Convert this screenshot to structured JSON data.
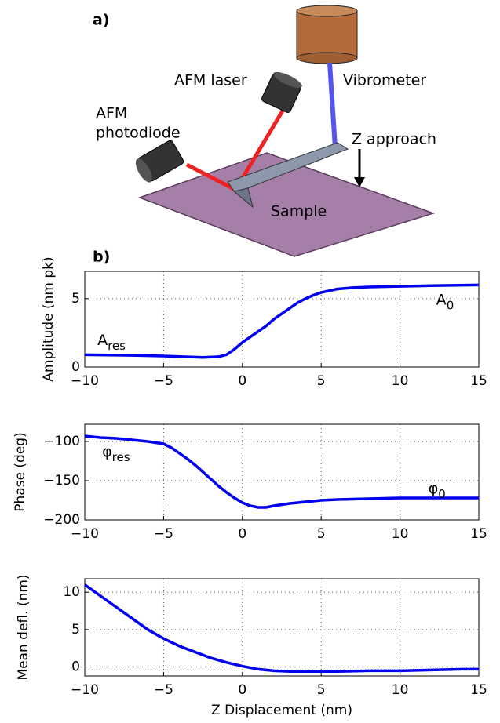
{
  "figure": {
    "panel_a": "a)",
    "panel_b": "b)",
    "diagram": {
      "laser": "AFM laser",
      "photodiode_1": "AFM",
      "photodiode_2": "photodiode",
      "vibrometer": "Vibrometer",
      "approach": "Z approach",
      "sample": "Sample"
    }
  },
  "chart_data": [
    {
      "type": "line",
      "y_label": "Amplitude (nm pk)",
      "grid": true,
      "annotations": [
        {
          "text": "A",
          "sub": "res"
        },
        {
          "text": "A",
          "sub": "0"
        }
      ],
      "xlim": [
        -10,
        15
      ],
      "ylim": [
        0,
        7
      ],
      "xticks": [
        {
          "value": -10,
          "label": "−10"
        },
        {
          "value": -5,
          "label": "−5"
        },
        0,
        5,
        10,
        15
      ],
      "yticks": [
        0,
        5
      ],
      "series": [
        {
          "color": "#0000ee",
          "x": [
            -10,
            -7,
            -5,
            -2.5,
            -1.5,
            -1,
            -0.5,
            0,
            0.5,
            1,
            1.5,
            2,
            2.5,
            3,
            3.5,
            4,
            4.5,
            5,
            6,
            7,
            8,
            10,
            12,
            15
          ],
          "values": [
            0.9,
            0.85,
            0.8,
            0.7,
            0.75,
            0.9,
            1.3,
            1.8,
            2.2,
            2.6,
            3.0,
            3.5,
            3.9,
            4.3,
            4.7,
            5.0,
            5.25,
            5.45,
            5.7,
            5.8,
            5.85,
            5.9,
            5.95,
            6.0
          ]
        }
      ]
    },
    {
      "type": "line",
      "y_label": "Phase (deg)",
      "grid": true,
      "annotations": [
        {
          "text": "φ",
          "sub": "res"
        },
        {
          "text": "φ",
          "sub": "0"
        }
      ],
      "xlim": [
        -10,
        15
      ],
      "ylim": [
        -200,
        -78
      ],
      "xticks": [
        {
          "value": -10,
          "label": "−10"
        },
        {
          "value": -5,
          "label": "−5"
        },
        0,
        5,
        10,
        15
      ],
      "yticks": [
        {
          "value": -100,
          "label": "−100"
        },
        {
          "value": -150,
          "label": "−150"
        },
        {
          "value": -200,
          "label": "−200"
        }
      ],
      "series": [
        {
          "color": "#0000ee",
          "x": [
            -10,
            -9,
            -8,
            -7,
            -6,
            -5,
            -4.5,
            -4,
            -3.5,
            -3,
            -2.5,
            -2,
            -1.5,
            -1,
            -0.5,
            0,
            0.5,
            1,
            1.5,
            2,
            3,
            4,
            5,
            6,
            8,
            10,
            12,
            15
          ],
          "values": [
            -93,
            -95,
            -96,
            -98,
            -100,
            -103,
            -108,
            -115,
            -122,
            -130,
            -139,
            -148,
            -157,
            -165,
            -172,
            -178,
            -182,
            -184,
            -184,
            -182,
            -179,
            -177,
            -175,
            -174,
            -173,
            -172,
            -172,
            -172
          ]
        }
      ]
    },
    {
      "type": "line",
      "y_label": "Mean defl. (nm)",
      "x_label": "Z Displacement (nm)",
      "grid": true,
      "xlim": [
        -10,
        15
      ],
      "ylim": [
        -1.2,
        11.8
      ],
      "xticks": [
        {
          "value": -10,
          "label": "−10"
        },
        {
          "value": -5,
          "label": "−5"
        },
        0,
        5,
        10,
        15
      ],
      "yticks": [
        0,
        5,
        10
      ],
      "series": [
        {
          "color": "#0000ee",
          "x": [
            -10,
            -9,
            -8,
            -7,
            -6,
            -5,
            -4,
            -3,
            -2,
            -1,
            0,
            1,
            2,
            3,
            4,
            6,
            8,
            10,
            12,
            14,
            15
          ],
          "values": [
            11,
            9.5,
            8,
            6.5,
            5,
            3.8,
            2.8,
            2,
            1.2,
            0.6,
            0.1,
            -0.3,
            -0.5,
            -0.6,
            -0.6,
            -0.6,
            -0.5,
            -0.5,
            -0.4,
            -0.3,
            -0.3
          ]
        }
      ]
    }
  ]
}
